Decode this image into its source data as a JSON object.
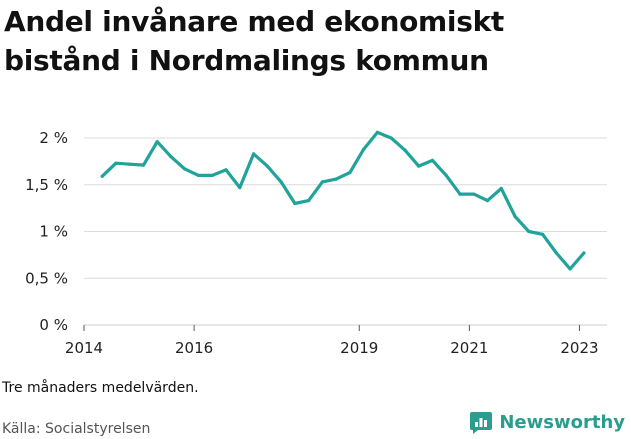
{
  "chart_data": {
    "type": "line",
    "title": "Andel invånare med ekonomiskt bistånd i Nordmalings kommun",
    "xlabel": "",
    "ylabel": "",
    "xlim": [
      2014,
      2023.5
    ],
    "ylim": [
      0,
      2
    ],
    "x_ticks": [
      {
        "value": 2014,
        "label": "2014"
      },
      {
        "value": 2016,
        "label": "2016"
      },
      {
        "value": 2019,
        "label": "2019"
      },
      {
        "value": 2021,
        "label": "2021"
      },
      {
        "value": 2023,
        "label": "2023"
      }
    ],
    "y_ticks": [
      {
        "value": 0,
        "label": "0 %"
      },
      {
        "value": 0.5,
        "label": "0,5 %"
      },
      {
        "value": 1,
        "label": "1 %"
      },
      {
        "value": 1.5,
        "label": "1,5 %"
      },
      {
        "value": 2,
        "label": "2 %"
      }
    ],
    "grid": true,
    "color": "#1fa39a",
    "series": [
      {
        "name": "Andel invånare med ekonomiskt bistånd",
        "x": [
          2014.33,
          2014.58,
          2014.83,
          2015.08,
          2015.33,
          2015.58,
          2015.83,
          2016.08,
          2016.33,
          2016.58,
          2016.83,
          2017.08,
          2017.33,
          2017.58,
          2017.83,
          2018.08,
          2018.33,
          2018.58,
          2018.83,
          2019.08,
          2019.33,
          2019.58,
          2019.83,
          2020.08,
          2020.33,
          2020.58,
          2020.83,
          2021.08,
          2021.33,
          2021.58,
          2021.83,
          2022.08,
          2022.33,
          2022.58,
          2022.83,
          2023.08
        ],
        "values": [
          1.59,
          1.73,
          1.72,
          1.71,
          1.96,
          1.8,
          1.67,
          1.6,
          1.6,
          1.66,
          1.47,
          1.83,
          1.7,
          1.53,
          1.3,
          1.33,
          1.53,
          1.56,
          1.63,
          1.88,
          2.06,
          2.0,
          1.87,
          1.7,
          1.76,
          1.6,
          1.4,
          1.4,
          1.33,
          1.46,
          1.16,
          1.0,
          0.97,
          0.77,
          0.6,
          0.77
        ]
      }
    ]
  },
  "footer": {
    "note": "Tre månaders medelvärden.",
    "source": "Källa: Socialstyrelsen",
    "brand": "Newsworthy",
    "brand_color": "#2a9d8f"
  }
}
